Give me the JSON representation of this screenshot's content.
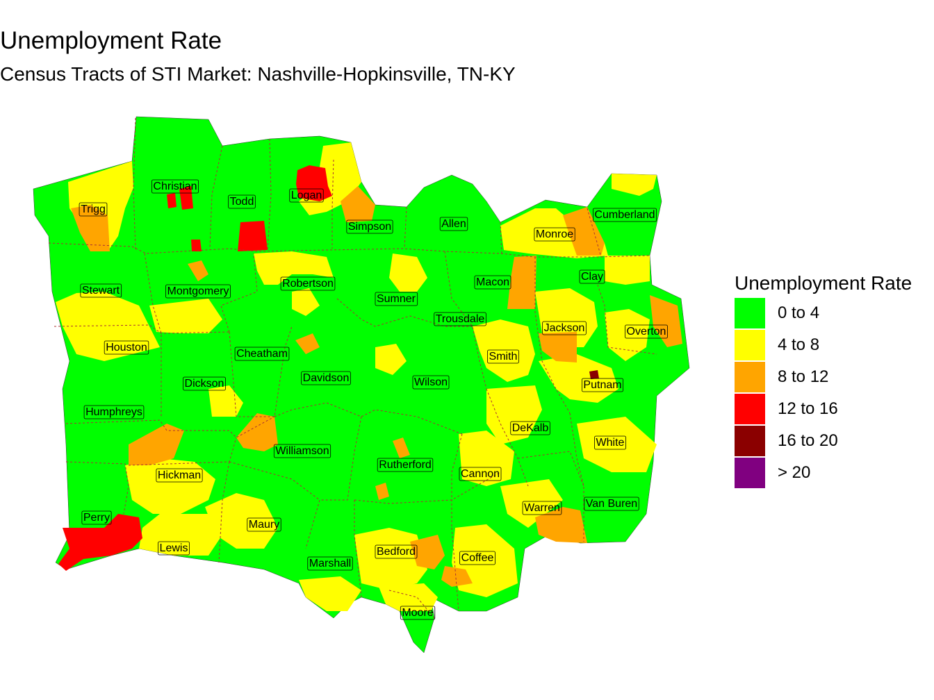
{
  "title": "Unemployment Rate",
  "subtitle": "Census Tracts of STI Market: Nashville-Hopkinsville, TN-KY",
  "legend": {
    "title": "Unemployment Rate",
    "items": [
      {
        "label": "0 to 4",
        "color": "#00ff00"
      },
      {
        "label": "4 to 8",
        "color": "#ffff00"
      },
      {
        "label": "8 to 12",
        "color": "#ffa500"
      },
      {
        "label": "12 to 16",
        "color": "#ff0000"
      },
      {
        "label": "16 to 20",
        "color": "#8b0000"
      },
      {
        "label": "> 20",
        "color": "#800080"
      }
    ]
  },
  "counties": [
    "Trigg",
    "Christian",
    "Todd",
    "Logan",
    "Simpson",
    "Allen",
    "Monroe",
    "Cumberland",
    "Stewart",
    "Montgomery",
    "Robertson",
    "Sumner",
    "Macon",
    "Clay",
    "Trousdale",
    "Jackson",
    "Overton",
    "Houston",
    "Cheatham",
    "Davidson",
    "Smith",
    "Wilson",
    "Putnam",
    "Dickson",
    "DeKalb",
    "Humphreys",
    "White",
    "Williamson",
    "Rutherford",
    "Hickman",
    "Cannon",
    "Warren",
    "Van Buren",
    "Perry",
    "Maury",
    "Lewis",
    "Bedford",
    "Coffee",
    "Marshall",
    "Moore"
  ]
}
